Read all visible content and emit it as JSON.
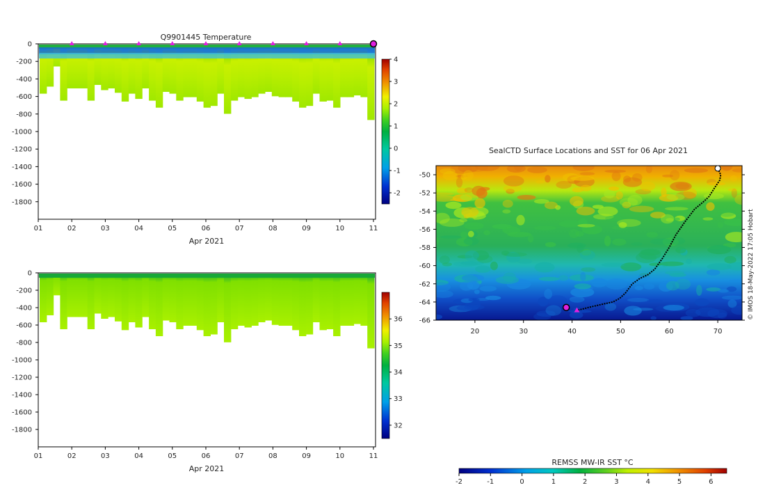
{
  "chart_data": [
    {
      "type": "heatmap",
      "title": "Q9901445  Temperature",
      "xlabel": "Apr 2021",
      "x_ticks": [
        "01",
        "02",
        "03",
        "04",
        "05",
        "06",
        "07",
        "08",
        "09",
        "10",
        "11"
      ],
      "y_ticks": [
        "0",
        "-200",
        "-400",
        "-600",
        "-800",
        "-1000",
        "-1200",
        "-1400",
        "-1600",
        "-1800"
      ],
      "ylim": [
        -2000,
        0
      ],
      "colorbar_ticks": [
        "4",
        "3",
        "2",
        "1",
        "0",
        "-1",
        "-2"
      ],
      "colorbar_range": [
        -2.5,
        4
      ],
      "profile_day_positions": [
        2,
        3,
        4,
        5,
        6,
        7,
        8,
        9,
        10
      ],
      "profile_max_depths": [
        -560,
        -480,
        -250,
        -640,
        -500,
        -500,
        -500,
        -640,
        -460,
        -520,
        -500,
        -550,
        -650,
        -560,
        -620,
        -500,
        -640,
        -720,
        -540,
        -560,
        -640,
        -600,
        -600,
        -650,
        -720,
        -700,
        -560,
        -790,
        -640,
        -600,
        -620,
        -600,
        -560,
        -540,
        -590,
        -600,
        -600,
        -650,
        -720,
        -700,
        -560,
        -650,
        -640,
        -720,
        -600,
        -600,
        -580,
        -600,
        -860
      ]
    },
    {
      "type": "heatmap",
      "title": "",
      "xlabel": "Apr 2021",
      "x_ticks": [
        "01",
        "02",
        "03",
        "04",
        "05",
        "06",
        "07",
        "08",
        "09",
        "10",
        "11"
      ],
      "y_ticks": [
        "0",
        "-200",
        "-400",
        "-600",
        "-800",
        "-1000",
        "-1200",
        "-1400",
        "-1600",
        "-1800"
      ],
      "ylim": [
        -2000,
        0
      ],
      "colorbar_ticks": [
        "36",
        "35",
        "34",
        "33",
        "32"
      ],
      "colorbar_range": [
        31.5,
        37
      ]
    },
    {
      "type": "heatmap",
      "title": "SealCTD Surface Locations and SST for 06 Apr 2021",
      "x_ticks": [
        "20",
        "30",
        "40",
        "50",
        "60",
        "70"
      ],
      "y_ticks": [
        "-50",
        "-52",
        "-54",
        "-56",
        "-58",
        "-60",
        "-62",
        "-64",
        "-66"
      ],
      "xlim": [
        12,
        75
      ],
      "ylim": [
        -66,
        -49
      ],
      "colorbar_label": "REMSS MW-IR SST °C",
      "colorbar_ticks": [
        "-2",
        "-1",
        "0",
        "1",
        "2",
        "3",
        "4",
        "5",
        "6"
      ],
      "colorbar_range": [
        -2,
        6.5
      ],
      "track": [
        [
          70.0,
          -49.3
        ],
        [
          70.6,
          -50.0
        ],
        [
          70.4,
          -50.6
        ],
        [
          69.4,
          -51.4
        ],
        [
          68.2,
          -52.4
        ],
        [
          67.0,
          -53.0
        ],
        [
          65.2,
          -53.8
        ],
        [
          63.2,
          -55.2
        ],
        [
          61.4,
          -56.6
        ],
        [
          60.0,
          -58.0
        ],
        [
          58.6,
          -59.2
        ],
        [
          57.0,
          -60.4
        ],
        [
          55.6,
          -61.0
        ],
        [
          54.0,
          -61.4
        ],
        [
          52.4,
          -62.0
        ],
        [
          51.0,
          -63.0
        ],
        [
          49.8,
          -63.6
        ],
        [
          48.4,
          -64.0
        ],
        [
          46.6,
          -64.2
        ],
        [
          45.0,
          -64.4
        ],
        [
          43.4,
          -64.6
        ],
        [
          42.0,
          -64.8
        ],
        [
          41.0,
          -64.9
        ]
      ],
      "start_marker": [
        38.8,
        -64.6
      ],
      "current_marker": [
        41.0,
        -64.9
      ]
    }
  ],
  "credit": "© IMOS 18-May-2022 17:05 Hobart",
  "colors": {
    "profile_marker": "#e020e0",
    "track": "#000000"
  }
}
